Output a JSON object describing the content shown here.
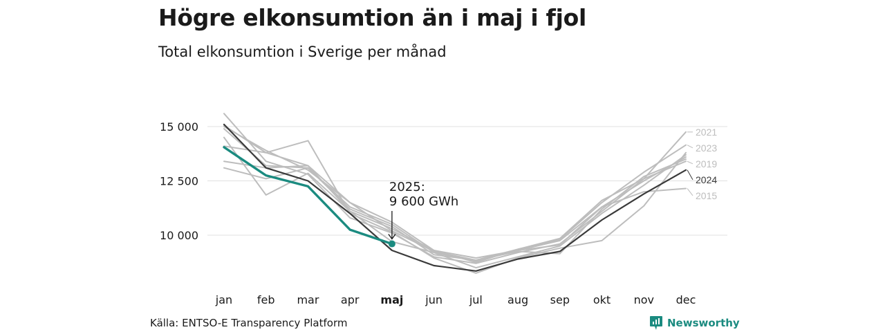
{
  "header": {
    "title": "Högre elkonsumtion än i maj i fjol",
    "subtitle": "Total elkonsumtion i Sverige per månad"
  },
  "footer": {
    "source": "Källa: ENTSO-E Transparency Platform",
    "brand": "Newsworthy"
  },
  "colors": {
    "highlight": "#1b8b80",
    "previous_year": "#3a3a3a",
    "other_years": "#bdbdbd",
    "grid": "#e0e0e0"
  },
  "chart_data": {
    "type": "line",
    "title": "Högre elkonsumtion än i maj i fjol",
    "subtitle": "Total elkonsumtion i Sverige per månad",
    "categories": [
      "jan",
      "feb",
      "mar",
      "apr",
      "maj",
      "jun",
      "jul",
      "aug",
      "sep",
      "okt",
      "nov",
      "dec"
    ],
    "highlighted_category": "maj",
    "ylim": [
      7500,
      16000
    ],
    "yticks": [
      10000,
      12500,
      15000
    ],
    "ytick_labels": [
      "10 000",
      "12 500",
      "15 000"
    ],
    "grid": true,
    "unit": "GWh",
    "series": [
      {
        "name": "2025",
        "role": "highlight",
        "values": [
          14050,
          12750,
          12250,
          10250,
          9600,
          null,
          null,
          null,
          null,
          null,
          null,
          null
        ]
      },
      {
        "name": "2024",
        "role": "previous",
        "values": [
          15100,
          13100,
          12500,
          11000,
          9300,
          8600,
          8350,
          8900,
          9250,
          10700,
          11900,
          13000
        ],
        "label": "2024"
      },
      {
        "name": "2021",
        "role": "other",
        "values": [
          15050,
          13800,
          13200,
          11500,
          10600,
          9300,
          8750,
          9350,
          9850,
          11600,
          12600,
          14750
        ],
        "label": "2021"
      },
      {
        "name": "2023",
        "role": "other",
        "values": [
          15000,
          13900,
          13000,
          11500,
          10200,
          9250,
          8850,
          9350,
          9800,
          11500,
          12900,
          14150
        ],
        "label": "2023"
      },
      {
        "name": "2019",
        "role": "other",
        "values": [
          15600,
          13400,
          12800,
          10800,
          10100,
          9000,
          8700,
          9200,
          9600,
          11100,
          12600,
          13400
        ],
        "label": "2019"
      },
      {
        "name": "2015",
        "role": "other",
        "values": [
          13400,
          13100,
          13200,
          11100,
          10300,
          9300,
          8950,
          9300,
          9550,
          11300,
          12000,
          12150
        ],
        "label": "2015"
      },
      {
        "name": "",
        "role": "other",
        "values": [
          13100,
          12600,
          13100,
          11200,
          10400,
          9100,
          8850,
          9250,
          9150,
          11200,
          12700,
          13500
        ]
      },
      {
        "name": "",
        "role": "other",
        "values": [
          14500,
          11850,
          12850,
          11100,
          9700,
          9200,
          8800,
          9300,
          9750,
          11300,
          12500,
          13600
        ]
      },
      {
        "name": "",
        "role": "other",
        "values": [
          14100,
          13800,
          14350,
          11000,
          10150,
          8950,
          8250,
          8950,
          9400,
          9750,
          11350,
          13800
        ]
      },
      {
        "name": "",
        "role": "other",
        "values": [
          14900,
          13200,
          13100,
          11300,
          10500,
          9200,
          8500,
          9000,
          9500,
          11000,
          12300,
          13700
        ]
      }
    ],
    "annotations": [
      {
        "series": "2025",
        "category": "maj",
        "text_line1": "2025:",
        "text_line2": "9 600 GWh"
      }
    ]
  }
}
